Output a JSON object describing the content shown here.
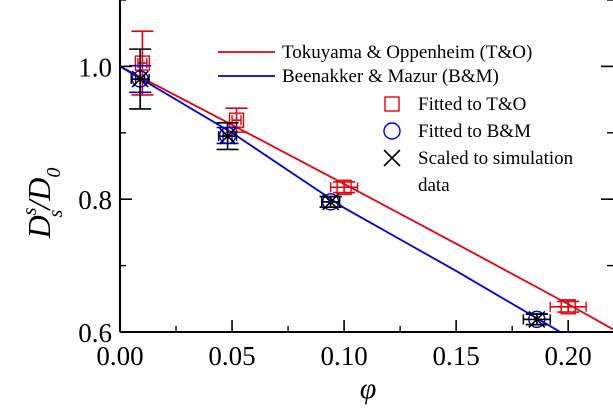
{
  "chart_data": {
    "type": "scatter",
    "title": "",
    "xlabel": "φ",
    "ylabel": {
      "main": "D",
      "sup": "s",
      "sub1": "s",
      "slash": "/D",
      "sub2": "0"
    },
    "xlim": [
      0.0,
      0.22
    ],
    "ylim": [
      0.6,
      1.1
    ],
    "x_ticks": [
      0.0,
      0.05,
      0.1,
      0.15,
      0.2
    ],
    "x_tick_labels": [
      "0.00",
      "0.05",
      "0.10",
      "0.15",
      "0.20"
    ],
    "y_ticks": [
      0.6,
      0.8,
      1.0
    ],
    "y_tick_labels": [
      "0.6",
      "0.8",
      "1.0"
    ],
    "grid": false,
    "legend_position": "top-right",
    "lines": [
      {
        "name": "Tokuyama & Oppenheim (T&O)",
        "color": "#e8000b",
        "x": [
          0.0,
          0.05,
          0.1,
          0.15,
          0.2,
          0.22
        ],
        "y": [
          1.0,
          0.912,
          0.823,
          0.733,
          0.642,
          0.604
        ]
      },
      {
        "name": "Beenakker & Mazur (B&M)",
        "color": "#0000e0",
        "x": [
          0.0,
          0.05,
          0.1,
          0.15,
          0.2
        ],
        "y": [
          1.0,
          0.9,
          0.787,
          0.692,
          0.593
        ]
      }
    ],
    "markers": [
      {
        "name": "Fitted to T&O",
        "symbol": "square",
        "color": "#e8000b",
        "points": [
          {
            "x": 0.01,
            "y": 1.005,
            "yerr": 0.048,
            "xerr": 0.002
          },
          {
            "x": 0.052,
            "y": 0.919,
            "yerr": 0.018,
            "xerr": 0.002
          },
          {
            "x": 0.1,
            "y": 0.818,
            "yerr": 0.008,
            "xerr": 0.006
          },
          {
            "x": 0.2,
            "y": 0.638,
            "yerr": 0.008,
            "xerr": 0.008
          }
        ]
      },
      {
        "name": "Fitted to B&M",
        "symbol": "circle",
        "color": "#0000e0",
        "points": [
          {
            "x": 0.009,
            "y": 0.981,
            "yerr": 0.02,
            "xerr": 0.002
          },
          {
            "x": 0.048,
            "y": 0.896,
            "yerr": 0.012,
            "xerr": 0.002
          },
          {
            "x": 0.094,
            "y": 0.796,
            "yerr": 0.008,
            "xerr": 0.004
          },
          {
            "x": 0.186,
            "y": 0.619,
            "yerr": 0.008,
            "xerr": 0.006
          }
        ]
      },
      {
        "name": "Scaled to simulation data",
        "label_lines": [
          "Scaled to simulation",
          "data"
        ],
        "symbol": "x",
        "color": "#000000",
        "points": [
          {
            "x": 0.009,
            "y": 0.981,
            "yerr": 0.045,
            "xerr": 0.004
          },
          {
            "x": 0.048,
            "y": 0.895,
            "yerr": 0.02,
            "xerr": 0.004
          },
          {
            "x": 0.094,
            "y": 0.796,
            "yerr": 0.008,
            "xerr": 0.004
          },
          {
            "x": 0.186,
            "y": 0.619,
            "yerr": 0.008,
            "xerr": 0.006
          }
        ]
      }
    ]
  }
}
